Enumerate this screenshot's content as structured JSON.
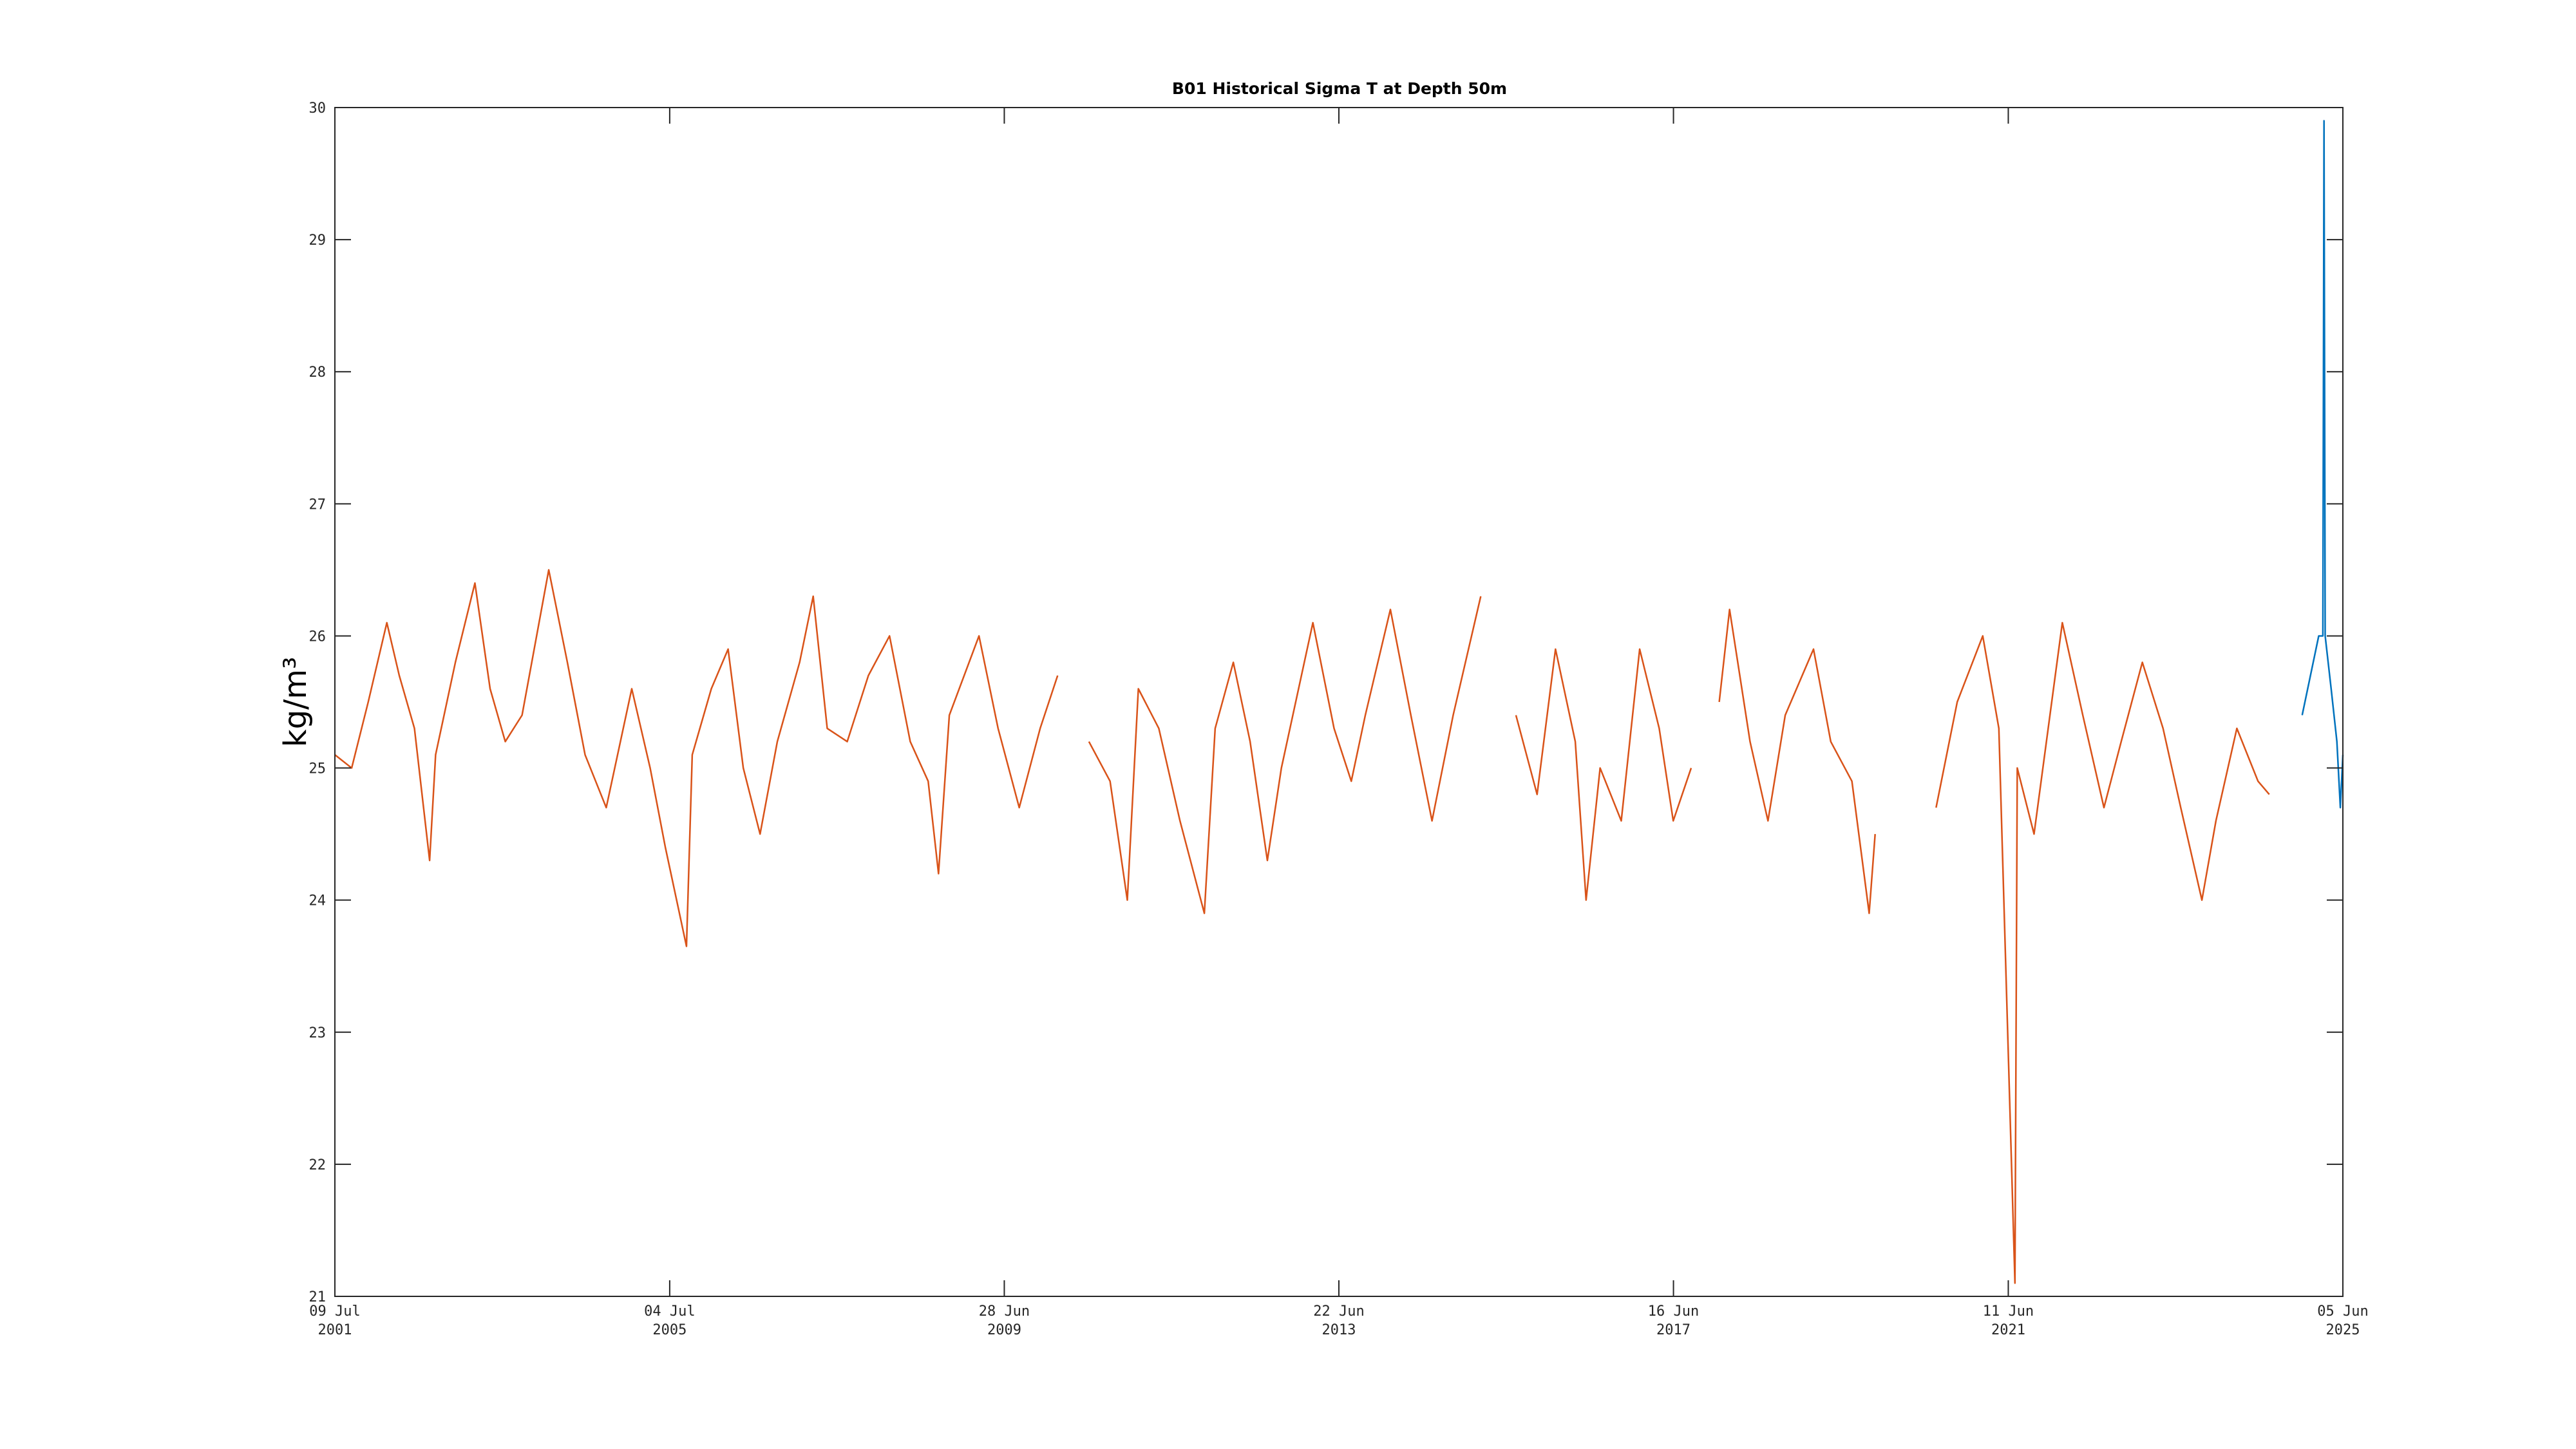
{
  "chart_data": {
    "type": "line",
    "title": "B01 Historical Sigma T at Depth 50m",
    "ylabel": "kg/m³",
    "ylim": [
      21,
      30
    ],
    "yticks": [
      21,
      22,
      23,
      24,
      25,
      26,
      27,
      28,
      29,
      30
    ],
    "xlim": [
      "2001-07-09",
      "2025-06-05"
    ],
    "xticks": [
      {
        "value": "2001-07-09",
        "label": [
          "09 Jul",
          "2001"
        ]
      },
      {
        "value": "2005-07-04",
        "label": [
          "04 Jul",
          "2005"
        ]
      },
      {
        "value": "2009-06-28",
        "label": [
          "28 Jun",
          "2009"
        ]
      },
      {
        "value": "2013-06-22",
        "label": [
          "22 Jun",
          "2013"
        ]
      },
      {
        "value": "2017-06-16",
        "label": [
          "16 Jun",
          "2017"
        ]
      },
      {
        "value": "2021-06-11",
        "label": [
          "11 Jun",
          "2021"
        ]
      },
      {
        "value": "2025-06-05",
        "label": [
          "05 Jun",
          "2025"
        ]
      }
    ],
    "grid": false,
    "series": [
      {
        "color": "#D95319",
        "x": [
          "2001-07-09",
          "2001-09-20",
          "2001-12-01",
          "2002-02-20",
          "2002-04-15",
          "2002-06-20",
          "2002-08-25",
          "2002-09-20",
          "2002-12-15",
          "2003-03-10",
          "2003-05-15",
          "2003-07-20",
          "2003-10-01",
          "2004-01-25",
          "2004-04-15",
          "2004-07-01",
          "2004-10-01",
          "2005-01-20",
          "2005-04-10",
          "2005-06-15",
          "2005-09-15",
          "2005-10-10",
          "2006-01-01",
          "2006-03-15",
          "2006-05-20",
          "2006-08-01",
          "2006-10-15",
          "2007-01-20",
          "2007-03-20",
          "2007-05-20",
          "2007-08-15",
          "2007-11-15",
          "2008-02-15",
          "2008-05-15",
          "2008-08-01",
          "2008-09-15",
          "2008-11-01",
          "2009-03-10",
          "2009-06-01",
          "2009-09-01",
          "2009-12-01",
          "2010-02-15",
          "2010-05-01",
          "2010-07-01",
          "2010-10-01",
          "2010-12-15",
          "2011-02-01",
          "2011-05-01",
          "2011-08-01",
          "2011-11-15",
          "2012-01-01",
          "2012-03-20",
          "2012-06-01",
          "2012-08-15",
          "2012-10-15",
          "2013-03-01",
          "2013-06-01",
          "2013-08-15",
          "2013-10-15",
          "2014-02-01",
          "2014-05-01",
          "2014-08-01",
          "2014-11-01",
          "2015-03-01",
          "2015-06-01",
          "2015-08-01",
          "2015-11-01",
          "2016-01-20",
          "2016-04-15",
          "2016-06-01",
          "2016-08-01",
          "2016-11-01",
          "2017-01-20",
          "2017-04-15",
          "2017-06-15",
          "2017-09-01",
          "2017-11-01",
          "2018-01-01",
          "2018-02-15",
          "2018-05-15",
          "2018-08-01",
          "2018-10-15",
          "2019-02-15",
          "2019-05-01",
          "2019-08-01",
          "2019-10-15",
          "2019-11-10",
          "2020-03-01",
          "2020-08-01",
          "2020-11-01",
          "2021-02-20",
          "2021-05-01",
          "2021-07-10",
          "2021-07-20",
          "2021-10-01",
          "2022-02-01",
          "2022-05-01",
          "2022-08-01",
          "2022-10-15",
          "2023-01-15",
          "2023-04-15",
          "2023-07-01",
          "2023-10-01",
          "2023-12-01",
          "2024-03-01",
          "2024-06-01",
          "2024-07-20"
        ],
        "values": [
          25.1,
          25.0,
          25.5,
          26.1,
          25.7,
          25.3,
          24.3,
          25.1,
          25.8,
          26.4,
          25.6,
          25.2,
          25.4,
          26.5,
          25.8,
          25.1,
          24.7,
          25.6,
          25.0,
          24.4,
          23.65,
          25.1,
          25.6,
          25.9,
          25.0,
          24.5,
          25.2,
          25.8,
          26.3,
          25.3,
          25.2,
          25.7,
          26.0,
          25.2,
          24.9,
          24.2,
          25.4,
          26.0,
          25.3,
          24.7,
          25.3,
          25.7,
          null,
          25.2,
          24.9,
          24.0,
          25.6,
          25.3,
          24.6,
          23.9,
          25.3,
          25.8,
          25.2,
          24.3,
          25.0,
          26.1,
          25.3,
          24.9,
          25.4,
          26.2,
          25.4,
          24.6,
          25.4,
          26.3,
          null,
          25.4,
          24.8,
          25.9,
          25.2,
          24.0,
          25.0,
          24.6,
          25.9,
          25.3,
          24.6,
          25.0,
          null,
          25.5,
          26.2,
          25.2,
          24.6,
          25.4,
          25.9,
          25.2,
          24.9,
          23.9,
          24.5,
          null,
          24.7,
          25.5,
          26.0,
          25.3,
          21.1,
          25.0,
          24.5,
          26.1,
          25.4,
          24.7,
          25.2,
          25.8,
          25.3,
          24.7,
          24.0,
          24.6,
          25.3,
          24.9,
          24.8
        ]
      },
      {
        "color": "#0072BD",
        "x": [
          "2024-12-10",
          "2025-01-15",
          "2025-02-20",
          "2025-03-10",
          "2025-03-15",
          "2025-03-20",
          "2025-04-15",
          "2025-05-10",
          "2025-05-25",
          "2025-06-05"
        ],
        "values": [
          25.4,
          25.7,
          26.0,
          26.0,
          29.9,
          26.0,
          25.6,
          25.2,
          24.7,
          25.1
        ]
      }
    ]
  }
}
